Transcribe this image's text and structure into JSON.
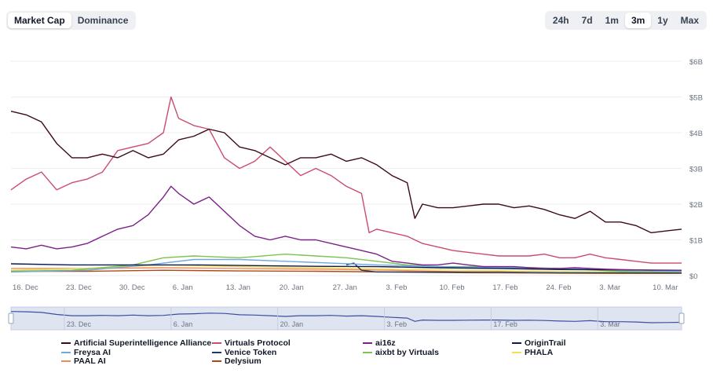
{
  "range_tabs": {
    "metric": [
      "Market Cap",
      "Dominance"
    ],
    "metric_active": 0,
    "period": [
      "24h",
      "7d",
      "1m",
      "3m",
      "1y",
      "Max"
    ],
    "period_active": 3
  },
  "colors": {
    "grid": "#eceef2",
    "axis_text": "#6b7280",
    "navigator_fill": "#dfe4f1",
    "navigator_line": "#3a4fa3"
  },
  "chart_data": {
    "type": "line",
    "x_ticks": [
      "16. Dec",
      "23. Dec",
      "30. Dec",
      "6. Jan",
      "13. Jan",
      "20. Jan",
      "27. Jan",
      "3. Feb",
      "10. Feb",
      "17. Feb",
      "24. Feb",
      "3. Mar",
      "10. Mar"
    ],
    "x_range": [
      "2024-12-16",
      "2025-03-13"
    ],
    "y_ticks": [
      "$0",
      "$1B",
      "$2B",
      "$3B",
      "$4B",
      "$5B",
      "$6B"
    ],
    "ylim": [
      0,
      6
    ],
    "y_unit": "billion USD",
    "grid": true,
    "legend_position": "bottom",
    "navigator_ticks": [
      "23. Dec",
      "6. Jan",
      "20. Jan",
      "3. Feb",
      "17. Feb",
      "3. Mar"
    ],
    "series": [
      {
        "name": "Artificial Superintelligence Alliance",
        "color": "#3d0a18",
        "points": [
          [
            0,
            4.6
          ],
          [
            2,
            4.5
          ],
          [
            4,
            4.3
          ],
          [
            6,
            3.7
          ],
          [
            8,
            3.3
          ],
          [
            10,
            3.3
          ],
          [
            12,
            3.4
          ],
          [
            14,
            3.3
          ],
          [
            16,
            3.5
          ],
          [
            18,
            3.3
          ],
          [
            20,
            3.4
          ],
          [
            22,
            3.8
          ],
          [
            24,
            3.9
          ],
          [
            26,
            4.1
          ],
          [
            28,
            4.0
          ],
          [
            30,
            3.6
          ],
          [
            32,
            3.5
          ],
          [
            34,
            3.3
          ],
          [
            36,
            3.1
          ],
          [
            38,
            3.3
          ],
          [
            40,
            3.3
          ],
          [
            42,
            3.4
          ],
          [
            44,
            3.2
          ],
          [
            46,
            3.3
          ],
          [
            48,
            3.1
          ],
          [
            50,
            2.8
          ],
          [
            52,
            2.6
          ],
          [
            53,
            1.6
          ],
          [
            54,
            2.0
          ],
          [
            56,
            1.9
          ],
          [
            58,
            1.9
          ],
          [
            60,
            1.95
          ],
          [
            62,
            2.0
          ],
          [
            64,
            2.0
          ],
          [
            66,
            1.9
          ],
          [
            68,
            1.95
          ],
          [
            70,
            1.85
          ],
          [
            72,
            1.7
          ],
          [
            74,
            1.6
          ],
          [
            76,
            1.8
          ],
          [
            78,
            1.5
          ],
          [
            80,
            1.5
          ],
          [
            82,
            1.4
          ],
          [
            84,
            1.2
          ],
          [
            86,
            1.25
          ],
          [
            88,
            1.3
          ]
        ]
      },
      {
        "name": "Virtuals Protocol",
        "color": "#cc4b6c",
        "points": [
          [
            0,
            2.4
          ],
          [
            2,
            2.7
          ],
          [
            4,
            2.9
          ],
          [
            6,
            2.4
          ],
          [
            8,
            2.6
          ],
          [
            10,
            2.7
          ],
          [
            12,
            2.9
          ],
          [
            14,
            3.5
          ],
          [
            16,
            3.6
          ],
          [
            18,
            3.7
          ],
          [
            20,
            4.0
          ],
          [
            21,
            5.0
          ],
          [
            22,
            4.4
          ],
          [
            24,
            4.2
          ],
          [
            26,
            4.1
          ],
          [
            28,
            3.3
          ],
          [
            30,
            3.0
          ],
          [
            32,
            3.2
          ],
          [
            34,
            3.6
          ],
          [
            36,
            3.2
          ],
          [
            38,
            2.8
          ],
          [
            40,
            3.0
          ],
          [
            42,
            2.8
          ],
          [
            44,
            2.5
          ],
          [
            46,
            2.3
          ],
          [
            47,
            1.2
          ],
          [
            48,
            1.3
          ],
          [
            50,
            1.2
          ],
          [
            52,
            1.1
          ],
          [
            54,
            0.9
          ],
          [
            56,
            0.8
          ],
          [
            58,
            0.7
          ],
          [
            60,
            0.65
          ],
          [
            62,
            0.6
          ],
          [
            64,
            0.55
          ],
          [
            66,
            0.55
          ],
          [
            68,
            0.55
          ],
          [
            70,
            0.6
          ],
          [
            72,
            0.5
          ],
          [
            74,
            0.5
          ],
          [
            76,
            0.6
          ],
          [
            78,
            0.5
          ],
          [
            80,
            0.45
          ],
          [
            82,
            0.4
          ],
          [
            84,
            0.35
          ],
          [
            86,
            0.35
          ],
          [
            88,
            0.35
          ]
        ]
      },
      {
        "name": "ai16z",
        "color": "#7c1f8a",
        "points": [
          [
            0,
            0.8
          ],
          [
            2,
            0.75
          ],
          [
            4,
            0.85
          ],
          [
            6,
            0.75
          ],
          [
            8,
            0.8
          ],
          [
            10,
            0.9
          ],
          [
            12,
            1.1
          ],
          [
            14,
            1.3
          ],
          [
            16,
            1.4
          ],
          [
            18,
            1.7
          ],
          [
            20,
            2.2
          ],
          [
            21,
            2.5
          ],
          [
            22,
            2.3
          ],
          [
            24,
            2.0
          ],
          [
            26,
            2.2
          ],
          [
            28,
            1.8
          ],
          [
            30,
            1.4
          ],
          [
            32,
            1.1
          ],
          [
            34,
            1.0
          ],
          [
            36,
            1.1
          ],
          [
            38,
            1.0
          ],
          [
            40,
            1.0
          ],
          [
            42,
            0.9
          ],
          [
            44,
            0.8
          ],
          [
            46,
            0.7
          ],
          [
            48,
            0.6
          ],
          [
            50,
            0.4
          ],
          [
            52,
            0.35
          ],
          [
            54,
            0.3
          ],
          [
            56,
            0.3
          ],
          [
            58,
            0.35
          ],
          [
            60,
            0.3
          ],
          [
            62,
            0.25
          ],
          [
            64,
            0.25
          ],
          [
            66,
            0.25
          ],
          [
            68,
            0.22
          ],
          [
            70,
            0.2
          ],
          [
            72,
            0.2
          ],
          [
            74,
            0.22
          ],
          [
            76,
            0.2
          ],
          [
            78,
            0.18
          ],
          [
            80,
            0.17
          ],
          [
            82,
            0.16
          ],
          [
            84,
            0.15
          ],
          [
            86,
            0.15
          ],
          [
            88,
            0.15
          ]
        ]
      },
      {
        "name": "OriginTrail",
        "color": "#0b1a4d",
        "points": [
          [
            0,
            0.33
          ],
          [
            8,
            0.3
          ],
          [
            16,
            0.3
          ],
          [
            24,
            0.3
          ],
          [
            32,
            0.28
          ],
          [
            40,
            0.26
          ],
          [
            48,
            0.25
          ],
          [
            56,
            0.22
          ],
          [
            64,
            0.2
          ],
          [
            72,
            0.17
          ],
          [
            80,
            0.16
          ],
          [
            88,
            0.15
          ]
        ]
      },
      {
        "name": "Freysa AI",
        "color": "#6ea8dc",
        "points": [
          [
            0,
            0.1
          ],
          [
            10,
            0.15
          ],
          [
            18,
            0.3
          ],
          [
            24,
            0.45
          ],
          [
            30,
            0.45
          ],
          [
            36,
            0.4
          ],
          [
            42,
            0.35
          ],
          [
            48,
            0.3
          ],
          [
            56,
            0.25
          ],
          [
            64,
            0.22
          ],
          [
            72,
            0.2
          ],
          [
            80,
            0.15
          ],
          [
            88,
            0.12
          ]
        ]
      },
      {
        "name": "Venice Token",
        "color": "#1e3a5f",
        "points": [
          [
            44,
            0.3
          ],
          [
            45,
            0.35
          ],
          [
            46,
            0.15
          ],
          [
            48,
            0.1
          ],
          [
            56,
            0.1
          ],
          [
            64,
            0.1
          ],
          [
            72,
            0.08
          ],
          [
            80,
            0.08
          ],
          [
            88,
            0.07
          ]
        ]
      },
      {
        "name": "aixbt by Virtuals",
        "color": "#7cc34f",
        "points": [
          [
            0,
            0.12
          ],
          [
            8,
            0.15
          ],
          [
            16,
            0.3
          ],
          [
            20,
            0.5
          ],
          [
            24,
            0.55
          ],
          [
            30,
            0.5
          ],
          [
            36,
            0.6
          ],
          [
            40,
            0.55
          ],
          [
            44,
            0.5
          ],
          [
            48,
            0.4
          ],
          [
            52,
            0.3
          ],
          [
            56,
            0.25
          ],
          [
            64,
            0.25
          ],
          [
            72,
            0.2
          ],
          [
            80,
            0.12
          ],
          [
            88,
            0.1
          ]
        ]
      },
      {
        "name": "PHALA",
        "color": "#f2de57",
        "points": [
          [
            0,
            0.15
          ],
          [
            10,
            0.2
          ],
          [
            20,
            0.3
          ],
          [
            30,
            0.25
          ],
          [
            40,
            0.22
          ],
          [
            50,
            0.18
          ],
          [
            60,
            0.15
          ],
          [
            70,
            0.12
          ],
          [
            80,
            0.1
          ],
          [
            88,
            0.1
          ]
        ]
      },
      {
        "name": "PAAL AI",
        "color": "#f08a5d",
        "points": [
          [
            0,
            0.2
          ],
          [
            10,
            0.2
          ],
          [
            20,
            0.22
          ],
          [
            30,
            0.2
          ],
          [
            40,
            0.18
          ],
          [
            50,
            0.15
          ],
          [
            60,
            0.1
          ],
          [
            70,
            0.08
          ],
          [
            80,
            0.07
          ],
          [
            88,
            0.06
          ]
        ]
      },
      {
        "name": "Delysium",
        "color": "#b04a12",
        "points": [
          [
            0,
            0.12
          ],
          [
            10,
            0.12
          ],
          [
            20,
            0.15
          ],
          [
            30,
            0.13
          ],
          [
            40,
            0.12
          ],
          [
            50,
            0.1
          ],
          [
            60,
            0.08
          ],
          [
            70,
            0.07
          ],
          [
            80,
            0.06
          ],
          [
            88,
            0.06
          ]
        ]
      }
    ]
  }
}
